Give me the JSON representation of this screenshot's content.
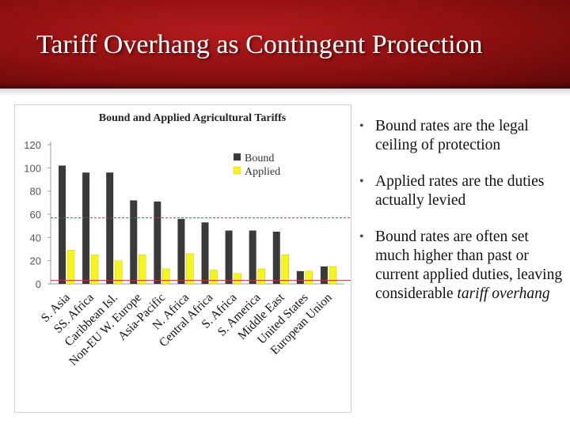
{
  "slide": {
    "title": "Tariff Overhang as Contingent Protection",
    "colors": {
      "header": "#8c0f10",
      "bound": "#3a3a3a",
      "applied": "#f5f51a",
      "reference_line": "#c0392b"
    }
  },
  "bullets": [
    {
      "text": "Bound rates are the legal ceiling of protection"
    },
    {
      "text": "Applied rates are the duties actually levied"
    },
    {
      "text": "Bound rates are often set much higher than past or current applied duties, leaving considerable",
      "emphasis": "tariff overhang"
    }
  ],
  "chart_data": {
    "type": "bar",
    "title": "Bound and Applied Agricultural Tariffs",
    "categories": [
      "S. Asia",
      "SS. Africa",
      "Caribbean Isl.",
      "Non-EU W. Europe",
      "Asia-Pacific",
      "N. Africa",
      "Central Africa",
      "S. Africa",
      "S. America",
      "Middle East",
      "United States",
      "European Union"
    ],
    "series": [
      {
        "name": "Bound",
        "values": [
          102,
          96,
          96,
          72,
          71,
          56,
          53,
          46,
          46,
          45,
          11,
          15
        ]
      },
      {
        "name": "Applied",
        "values": [
          29,
          25,
          20,
          25,
          13,
          26,
          12,
          9,
          13,
          25,
          11,
          15
        ]
      }
    ],
    "ylim": [
      0,
      120
    ],
    "yticks": [
      0,
      20,
      40,
      60,
      80,
      100,
      120
    ],
    "reference_lines": [
      57,
      3
    ],
    "legend": "top-right",
    "grid": false
  }
}
